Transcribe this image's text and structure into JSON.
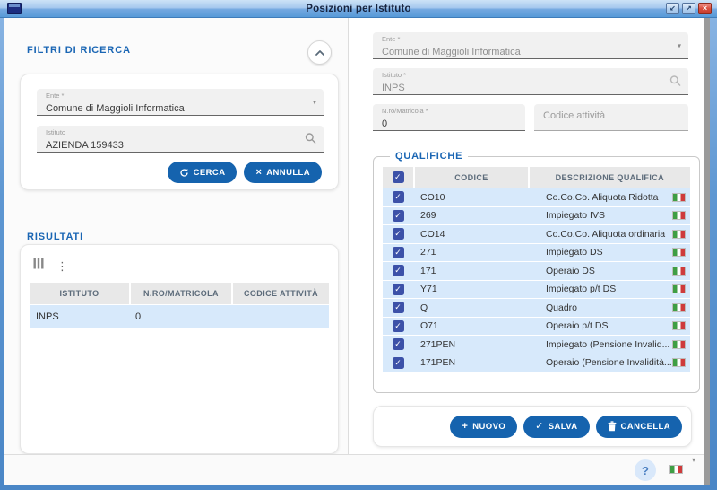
{
  "window": {
    "title": "Posizioni per Istituto"
  },
  "icons": {
    "minimize": "↙",
    "maximize": "↗",
    "close": "×",
    "dropdown": "▾",
    "kebab": "⋮",
    "check": "✓",
    "help": "?",
    "plus": "+"
  },
  "filters": {
    "section_title": "FILTRI DI RICERCA",
    "ente_label": "Ente *",
    "ente_value": "Comune di Maggioli Informatica",
    "istituto_label": "Istituto",
    "istituto_value": "AZIENDA 159433",
    "cerca_button": "CERCA",
    "annulla_button": "ANNULLA"
  },
  "results": {
    "section_title": "RISULTATI",
    "columns": [
      "ISTITUTO",
      "N.RO/MATRICOLA",
      "CODICE ATTIVITÀ"
    ],
    "rows": [
      [
        "INPS",
        "0",
        ""
      ]
    ]
  },
  "detail": {
    "ente_label": "Ente *",
    "ente_value": "Comune di Maggioli Informatica",
    "istituto_label": "Istituto *",
    "istituto_value": "INPS",
    "matricola_label": "N.ro/Matricola *",
    "matricola_value": "0",
    "codice_attivita_placeholder": "Codice attività",
    "qualifiche": {
      "section_title": "QUALIFICHE",
      "columns": [
        "CODICE",
        "DESCRIZIONE QUALIFICA"
      ],
      "header_checked": true,
      "rows": [
        {
          "codice": "CO10",
          "descrizione": "Co.Co.Co. Aliquota Ridotta",
          "checked": true
        },
        {
          "codice": "269",
          "descrizione": "Impiegato IVS",
          "checked": true
        },
        {
          "codice": "CO14",
          "descrizione": "Co.Co.Co. Aliquota ordinaria",
          "checked": true
        },
        {
          "codice": "271",
          "descrizione": "Impiegato DS",
          "checked": true
        },
        {
          "codice": "171",
          "descrizione": "Operaio DS",
          "checked": true
        },
        {
          "codice": "Y71",
          "descrizione": "Impiegato p/t DS",
          "checked": true
        },
        {
          "codice": "Q",
          "descrizione": "Quadro",
          "checked": true
        },
        {
          "codice": "O71",
          "descrizione": "Operaio p/t DS",
          "checked": true
        },
        {
          "codice": "271PEN",
          "descrizione": "Impiegato (Pensione Invalid...",
          "checked": true
        },
        {
          "codice": "171PEN",
          "descrizione": "Operaio (Pensione Invalidità...",
          "checked": true
        }
      ]
    },
    "actions": {
      "nuovo": "NUOVO",
      "salva": "SALVA",
      "cancella": "CANCELLA"
    }
  },
  "colors": {
    "primary_button": "#1563ae",
    "section_title": "#1a66b4",
    "selected_row": "#d7e9fb",
    "checkbox": "#3c51a8",
    "titlebar_top": "#cde2f7",
    "titlebar_bottom": "#579ad8"
  }
}
